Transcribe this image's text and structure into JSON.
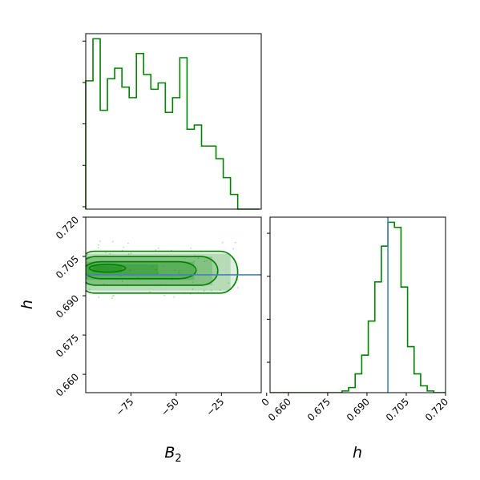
{
  "colors": {
    "samples": "#008000",
    "truth": "#4682b4",
    "frame": "#000000"
  },
  "chart_data": [
    {
      "type": "histogram",
      "panel": "B2-marginal",
      "x_range": [
        -100,
        -3
      ],
      "bin_edges": [
        -100,
        -96,
        -92,
        -88,
        -84,
        -80,
        -76,
        -72,
        -68,
        -64,
        -60,
        -56,
        -52,
        -48,
        -44,
        -40,
        -36,
        -32,
        -28,
        -24,
        -20,
        -16,
        -12,
        -8,
        -4
      ],
      "counts": [
        61,
        81,
        47,
        62,
        67,
        58,
        53,
        74,
        64,
        57,
        60,
        46,
        53,
        72,
        38,
        40,
        30,
        30,
        24,
        15,
        7,
        0,
        0,
        0
      ],
      "y_ticks_unlabeled": true
    },
    {
      "type": "contour",
      "panel": "B2-h-joint",
      "x_range": [
        -100,
        -3
      ],
      "y_range": [
        0.653,
        0.72
      ],
      "x_ticks": [
        -75,
        -50,
        -25,
        0
      ],
      "x_tick_labels": [
        "−75",
        "−50",
        "−25",
        "0"
      ],
      "y_ticks": [
        0.66,
        0.675,
        0.69,
        0.705,
        0.72
      ],
      "y_tick_labels": [
        "0.660",
        "0.675",
        "0.690",
        "0.705",
        "0.720"
      ],
      "xlabel": "B",
      "xlabel_subscript": "2",
      "ylabel": "h",
      "truth_h": 0.698,
      "contours": [
        {
          "center": [
            -60,
            0.699
          ],
          "x_span": [
            -105,
            -16
          ],
          "h_span": [
            0.691,
            0.707
          ]
        },
        {
          "center": [
            -63,
            0.699
          ],
          "x_span": [
            -104,
            -27
          ],
          "h_span": [
            0.694,
            0.705
          ]
        },
        {
          "center": [
            -70,
            0.7
          ],
          "x_span": [
            -101,
            -39
          ],
          "h_span": [
            0.6965,
            0.703
          ]
        },
        {
          "center": [
            -88,
            0.7
          ],
          "x_span": [
            -98,
            -78
          ],
          "h_span": [
            0.699,
            0.702
          ]
        }
      ]
    },
    {
      "type": "histogram",
      "panel": "h-marginal",
      "x_range": [
        0.653,
        0.72
      ],
      "x_ticks": [
        0.66,
        0.675,
        0.69,
        0.705,
        0.72
      ],
      "x_tick_labels": [
        "0.660",
        "0.675",
        "0.690",
        "0.705",
        "0.720"
      ],
      "xlabel": "h",
      "truth_h": 0.698,
      "bin_edges": [
        0.653,
        0.6555,
        0.658,
        0.6605,
        0.663,
        0.6655,
        0.668,
        0.6705,
        0.673,
        0.6755,
        0.678,
        0.6805,
        0.683,
        0.6855,
        0.688,
        0.6905,
        0.693,
        0.6955,
        0.698,
        0.7005,
        0.703,
        0.7055,
        0.708,
        0.7105,
        0.713,
        0.7155,
        0.718
      ],
      "counts": [
        0,
        0,
        0,
        0,
        0,
        0,
        0,
        0,
        0,
        0,
        0,
        1,
        3,
        11,
        22,
        42,
        65,
        86,
        100,
        97,
        62,
        27,
        11,
        4,
        1,
        0
      ],
      "y_ticks_unlabeled": true
    }
  ]
}
